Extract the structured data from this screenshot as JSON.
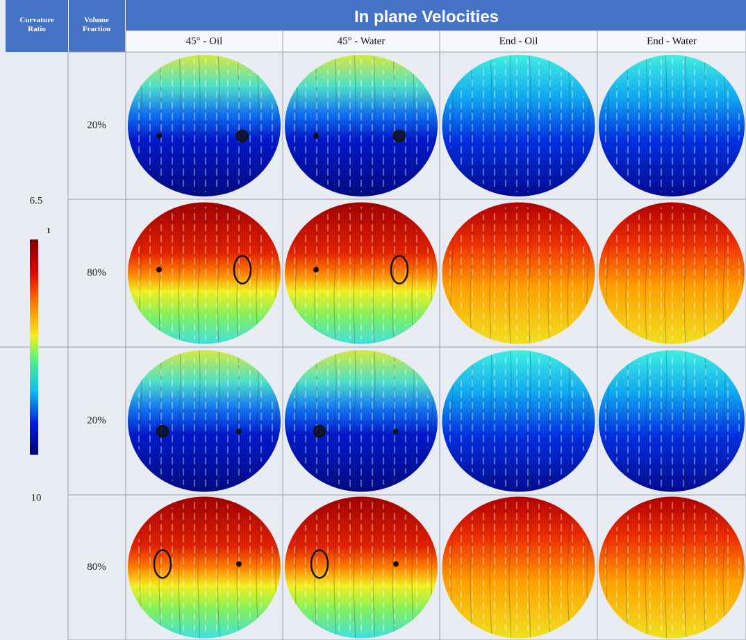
{
  "header": {
    "title": "In plane Velocities",
    "curvature_ratio": [
      "Curvature",
      "Ratio"
    ],
    "volume_fraction": [
      "Volume",
      "Fraction"
    ],
    "columns": [
      "45° - Oil",
      "45° - Water",
      "End - Oil",
      "End - Water"
    ]
  },
  "curvature_ratios": [
    "6.5",
    "10"
  ],
  "volume_fractions": [
    "20%",
    "80%",
    "20%",
    "80%"
  ],
  "colorbar": {
    "max_label": "1"
  }
}
